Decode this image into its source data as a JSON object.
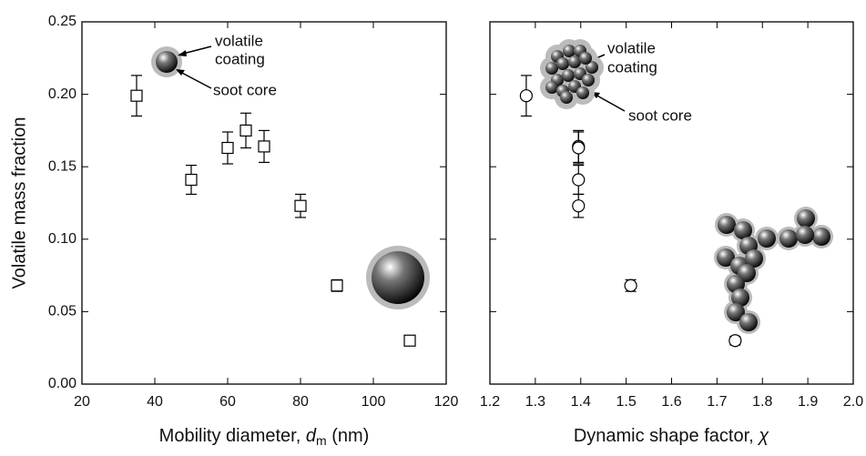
{
  "chart_data": [
    {
      "type": "scatter",
      "marker": "square",
      "ylabel": "Volatile mass fraction",
      "xlabel": [
        "Mobility diameter, ",
        "d",
        "m",
        " (nm)"
      ],
      "x": [
        35,
        50,
        60,
        65,
        70,
        80,
        90,
        110
      ],
      "values": [
        0.199,
        0.141,
        0.163,
        0.175,
        0.164,
        0.123,
        0.068,
        0.03
      ],
      "errors": [
        0.014,
        0.01,
        0.011,
        0.012,
        0.011,
        0.008,
        0.004,
        0.003
      ],
      "xlim": [
        20,
        120
      ],
      "xticks": [
        20,
        40,
        60,
        80,
        100,
        120
      ],
      "ylim": [
        0,
        0.25
      ],
      "yticks": [
        {
          "value": 0,
          "label": "0.00"
        },
        {
          "value": 0.05,
          "label": "0.05"
        },
        {
          "value": 0.1,
          "label": "0.10"
        },
        {
          "value": 0.15,
          "label": "0.15"
        },
        {
          "value": 0.2,
          "label": "0.20"
        },
        {
          "value": 0.25,
          "label": "0.25"
        }
      ],
      "ytick_labels": true,
      "annotations": [
        "volatile",
        "coating",
        "soot core"
      ]
    },
    {
      "type": "scatter",
      "marker": "circle",
      "xlabel": [
        "Dynamic shape factor, ",
        "χ"
      ],
      "x": [
        1.28,
        1.395,
        1.395,
        1.395,
        1.395,
        1.51,
        1.74
      ],
      "values": [
        0.199,
        0.164,
        0.163,
        0.141,
        0.123,
        0.068,
        0.03
      ],
      "errors": [
        0.014,
        0.011,
        0.011,
        0.01,
        0.008,
        0.004,
        0.003
      ],
      "xlim": [
        1.2,
        2.0
      ],
      "xticks": [
        1.2,
        1.3,
        1.4,
        1.5,
        1.6,
        1.7,
        1.8,
        1.9,
        {
          "value": 2.0,
          "label": "2.0"
        }
      ],
      "ylim": [
        0,
        0.25
      ],
      "yticks": [
        0,
        0.05,
        0.1,
        0.15,
        0.2,
        0.25
      ],
      "ytick_labels": false,
      "annotations": [
        "volatile",
        "coating",
        "soot core"
      ]
    }
  ]
}
